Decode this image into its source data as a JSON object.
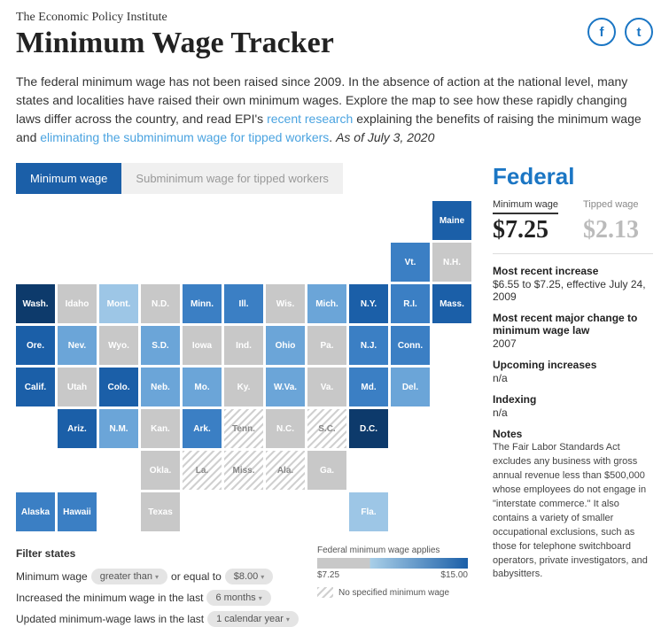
{
  "header": {
    "org": "The Economic Policy Institute",
    "title": "Minimum Wage Tracker",
    "fb": "f",
    "tw": "t"
  },
  "intro": {
    "t1": "The federal minimum wage has not been raised since 2009. In the absence of action at the national level, many states and localities have raised their own minimum wages. Explore the map to see how these rapidly changing laws differ across the country, and read EPI's ",
    "link1": "recent research",
    "t2": " explaining the benefits of raising the minimum wage and ",
    "link2": "eliminating the subminimum wage for tipped workers",
    "t3": ". ",
    "asof": "As of July 3, 2020"
  },
  "tabs": {
    "a": "Minimum wage",
    "b": "Subminimum wage for tipped workers"
  },
  "colors": {
    "d1": "#0d3a6b",
    "d2": "#1b5fa8",
    "d3": "#3b7fc4",
    "d4": "#6ba5d8",
    "d5": "#9dc6e6",
    "gray": "#c8c8c8"
  },
  "filters": {
    "title": "Filter states",
    "r1a": "Minimum wage",
    "r1b": "greater than",
    "r1c": "or equal to",
    "r1d": "$8.00",
    "r2a": "Increased the minimum wage in the last",
    "r2b": "6 months",
    "r3a": "Updated minimum-wage laws in the last",
    "r3b": "1 calendar year"
  },
  "legend": {
    "applies": "Federal minimum wage applies",
    "lo": "$7.25",
    "hi": "$15.00",
    "nospec": "No specified minimum wage"
  },
  "panel": {
    "title": "Federal",
    "minlbl": "Minimum wage",
    "minval": "$7.25",
    "tiplbl": "Tipped wage",
    "tipval": "$2.13",
    "m1l": "Most recent increase",
    "m1v": "$6.55 to $7.25, effective July 24, 2009",
    "m2l": "Most recent major change to minimum wage law",
    "m2v": "2007",
    "m3l": "Upcoming increases",
    "m3v": "n/a",
    "m4l": "Indexing",
    "m4v": "n/a",
    "m5l": "Notes",
    "m5v": "The Fair Labor Standards Act excludes any business with gross annual revenue less than $500,000 whose employees do not engage in \"interstate commerce.\" It also contains a variety of smaller occupational exclusions, such as those for telephone switchboard operators, private investigators, and babysitters."
  },
  "states": [
    {
      "l": "Maine",
      "c": 11,
      "r": 1,
      "k": "d2"
    },
    {
      "l": "Vt.",
      "c": 10,
      "r": 2,
      "k": "d3"
    },
    {
      "l": "N.H.",
      "c": 11,
      "r": 2,
      "k": "gray"
    },
    {
      "l": "Wash.",
      "c": 1,
      "r": 3,
      "k": "d1"
    },
    {
      "l": "Idaho",
      "c": 2,
      "r": 3,
      "k": "gray"
    },
    {
      "l": "Mont.",
      "c": 3,
      "r": 3,
      "k": "d5"
    },
    {
      "l": "N.D.",
      "c": 4,
      "r": 3,
      "k": "gray"
    },
    {
      "l": "Minn.",
      "c": 5,
      "r": 3,
      "k": "d3"
    },
    {
      "l": "Ill.",
      "c": 6,
      "r": 3,
      "k": "d3"
    },
    {
      "l": "Wis.",
      "c": 7,
      "r": 3,
      "k": "gray"
    },
    {
      "l": "Mich.",
      "c": 8,
      "r": 3,
      "k": "d4"
    },
    {
      "l": "N.Y.",
      "c": 9,
      "r": 3,
      "k": "d2"
    },
    {
      "l": "R.I.",
      "c": 10,
      "r": 3,
      "k": "d3"
    },
    {
      "l": "Mass.",
      "c": 11,
      "r": 3,
      "k": "d2"
    },
    {
      "l": "Ore.",
      "c": 1,
      "r": 4,
      "k": "d2"
    },
    {
      "l": "Nev.",
      "c": 2,
      "r": 4,
      "k": "d4"
    },
    {
      "l": "Wyo.",
      "c": 3,
      "r": 4,
      "k": "gray"
    },
    {
      "l": "S.D.",
      "c": 4,
      "r": 4,
      "k": "d4"
    },
    {
      "l": "Iowa",
      "c": 5,
      "r": 4,
      "k": "gray"
    },
    {
      "l": "Ind.",
      "c": 6,
      "r": 4,
      "k": "gray"
    },
    {
      "l": "Ohio",
      "c": 7,
      "r": 4,
      "k": "d4"
    },
    {
      "l": "Pa.",
      "c": 8,
      "r": 4,
      "k": "gray"
    },
    {
      "l": "N.J.",
      "c": 9,
      "r": 4,
      "k": "d3"
    },
    {
      "l": "Conn.",
      "c": 10,
      "r": 4,
      "k": "d3"
    },
    {
      "l": "Calif.",
      "c": 1,
      "r": 5,
      "k": "d2"
    },
    {
      "l": "Utah",
      "c": 2,
      "r": 5,
      "k": "gray"
    },
    {
      "l": "Colo.",
      "c": 3,
      "r": 5,
      "k": "d2"
    },
    {
      "l": "Neb.",
      "c": 4,
      "r": 5,
      "k": "d4"
    },
    {
      "l": "Mo.",
      "c": 5,
      "r": 5,
      "k": "d4"
    },
    {
      "l": "Ky.",
      "c": 6,
      "r": 5,
      "k": "gray"
    },
    {
      "l": "W.Va.",
      "c": 7,
      "r": 5,
      "k": "d4"
    },
    {
      "l": "Va.",
      "c": 8,
      "r": 5,
      "k": "gray"
    },
    {
      "l": "Md.",
      "c": 9,
      "r": 5,
      "k": "d3"
    },
    {
      "l": "Del.",
      "c": 10,
      "r": 5,
      "k": "d4"
    },
    {
      "l": "Ariz.",
      "c": 2,
      "r": 6,
      "k": "d2"
    },
    {
      "l": "N.M.",
      "c": 3,
      "r": 6,
      "k": "d4"
    },
    {
      "l": "Kan.",
      "c": 4,
      "r": 6,
      "k": "gray"
    },
    {
      "l": "Ark.",
      "c": 5,
      "r": 6,
      "k": "d3"
    },
    {
      "l": "Tenn.",
      "c": 6,
      "r": 6,
      "k": "hatch"
    },
    {
      "l": "N.C.",
      "c": 7,
      "r": 6,
      "k": "gray"
    },
    {
      "l": "S.C.",
      "c": 8,
      "r": 6,
      "k": "hatch"
    },
    {
      "l": "D.C.",
      "c": 9,
      "r": 6,
      "k": "d1"
    },
    {
      "l": "Okla.",
      "c": 4,
      "r": 7,
      "k": "gray"
    },
    {
      "l": "La.",
      "c": 5,
      "r": 7,
      "k": "hatch"
    },
    {
      "l": "Miss.",
      "c": 6,
      "r": 7,
      "k": "hatch"
    },
    {
      "l": "Ala.",
      "c": 7,
      "r": 7,
      "k": "hatch"
    },
    {
      "l": "Ga.",
      "c": 8,
      "r": 7,
      "k": "gray"
    },
    {
      "l": "Alaska",
      "c": 1,
      "r": 8,
      "k": "d3"
    },
    {
      "l": "Hawaii",
      "c": 2,
      "r": 8,
      "k": "d3"
    },
    {
      "l": "Texas",
      "c": 4,
      "r": 8,
      "k": "gray"
    },
    {
      "l": "Fla.",
      "c": 9,
      "r": 8,
      "k": "d5"
    }
  ]
}
